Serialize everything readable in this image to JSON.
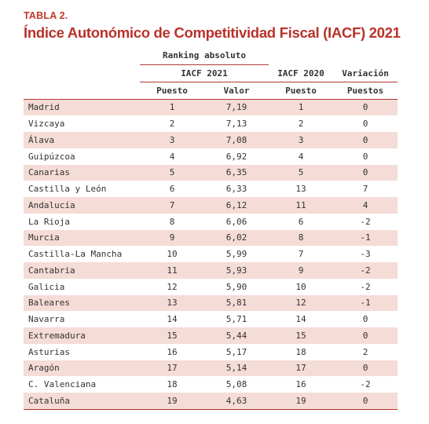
{
  "table_label": "TABLA 2.",
  "title": "Índice Autonómico de Competitividad Fiscal (IACF) 2021",
  "headers": {
    "ranking_absoluto": "Ranking absoluto",
    "iacf_2021": "IACF 2021",
    "iacf_2020": "IACF 2020",
    "variacion": "Variación",
    "puesto": "Puesto",
    "valor": "Valor",
    "puesto_2020": "Puesto",
    "puestos": "Puestos"
  },
  "rows": [
    {
      "region": "Madrid",
      "puesto_2021": "1",
      "valor_2021": "7,19",
      "puesto_2020": "1",
      "variacion": "0"
    },
    {
      "region": "Vizcaya",
      "puesto_2021": "2",
      "valor_2021": "7,13",
      "puesto_2020": "2",
      "variacion": "0"
    },
    {
      "region": "Álava",
      "puesto_2021": "3",
      "valor_2021": "7,08",
      "puesto_2020": "3",
      "variacion": "0"
    },
    {
      "region": "Guipúzcoa",
      "puesto_2021": "4",
      "valor_2021": "6,92",
      "puesto_2020": "4",
      "variacion": "0"
    },
    {
      "region": "Canarias",
      "puesto_2021": "5",
      "valor_2021": "6,35",
      "puesto_2020": "5",
      "variacion": "0"
    },
    {
      "region": "Castilla y León",
      "puesto_2021": "6",
      "valor_2021": "6,33",
      "puesto_2020": "13",
      "variacion": "7"
    },
    {
      "region": "Andalucía",
      "puesto_2021": "7",
      "valor_2021": "6,12",
      "puesto_2020": "11",
      "variacion": "4"
    },
    {
      "region": "La Rioja",
      "puesto_2021": "8",
      "valor_2021": "6,06",
      "puesto_2020": "6",
      "variacion": "-2"
    },
    {
      "region": "Murcia",
      "puesto_2021": "9",
      "valor_2021": "6,02",
      "puesto_2020": "8",
      "variacion": "-1"
    },
    {
      "region": "Castilla-La Mancha",
      "puesto_2021": "10",
      "valor_2021": "5,99",
      "puesto_2020": "7",
      "variacion": "-3"
    },
    {
      "region": "Cantabria",
      "puesto_2021": "11",
      "valor_2021": "5,93",
      "puesto_2020": "9",
      "variacion": "-2"
    },
    {
      "region": "Galicia",
      "puesto_2021": "12",
      "valor_2021": "5,90",
      "puesto_2020": "10",
      "variacion": "-2"
    },
    {
      "region": "Baleares",
      "puesto_2021": "13",
      "valor_2021": "5,81",
      "puesto_2020": "12",
      "variacion": "-1"
    },
    {
      "region": "Navarra",
      "puesto_2021": "14",
      "valor_2021": "5,71",
      "puesto_2020": "14",
      "variacion": "0"
    },
    {
      "region": "Extremadura",
      "puesto_2021": "15",
      "valor_2021": "5,44",
      "puesto_2020": "15",
      "variacion": "0"
    },
    {
      "region": "Asturias",
      "puesto_2021": "16",
      "valor_2021": "5,17",
      "puesto_2020": "18",
      "variacion": "2"
    },
    {
      "region": "Aragón",
      "puesto_2021": "17",
      "valor_2021": "5,14",
      "puesto_2020": "17",
      "variacion": "0"
    },
    {
      "region": "C. Valenciana",
      "puesto_2021": "18",
      "valor_2021": "5,08",
      "puesto_2020": "16",
      "variacion": "-2"
    },
    {
      "region": "Cataluña",
      "puesto_2021": "19",
      "valor_2021": "4,63",
      "puesto_2020": "19",
      "variacion": "0"
    }
  ],
  "colors": {
    "accent": "#b8322a",
    "row_shade": "#f5dcd6",
    "text": "#333333"
  }
}
